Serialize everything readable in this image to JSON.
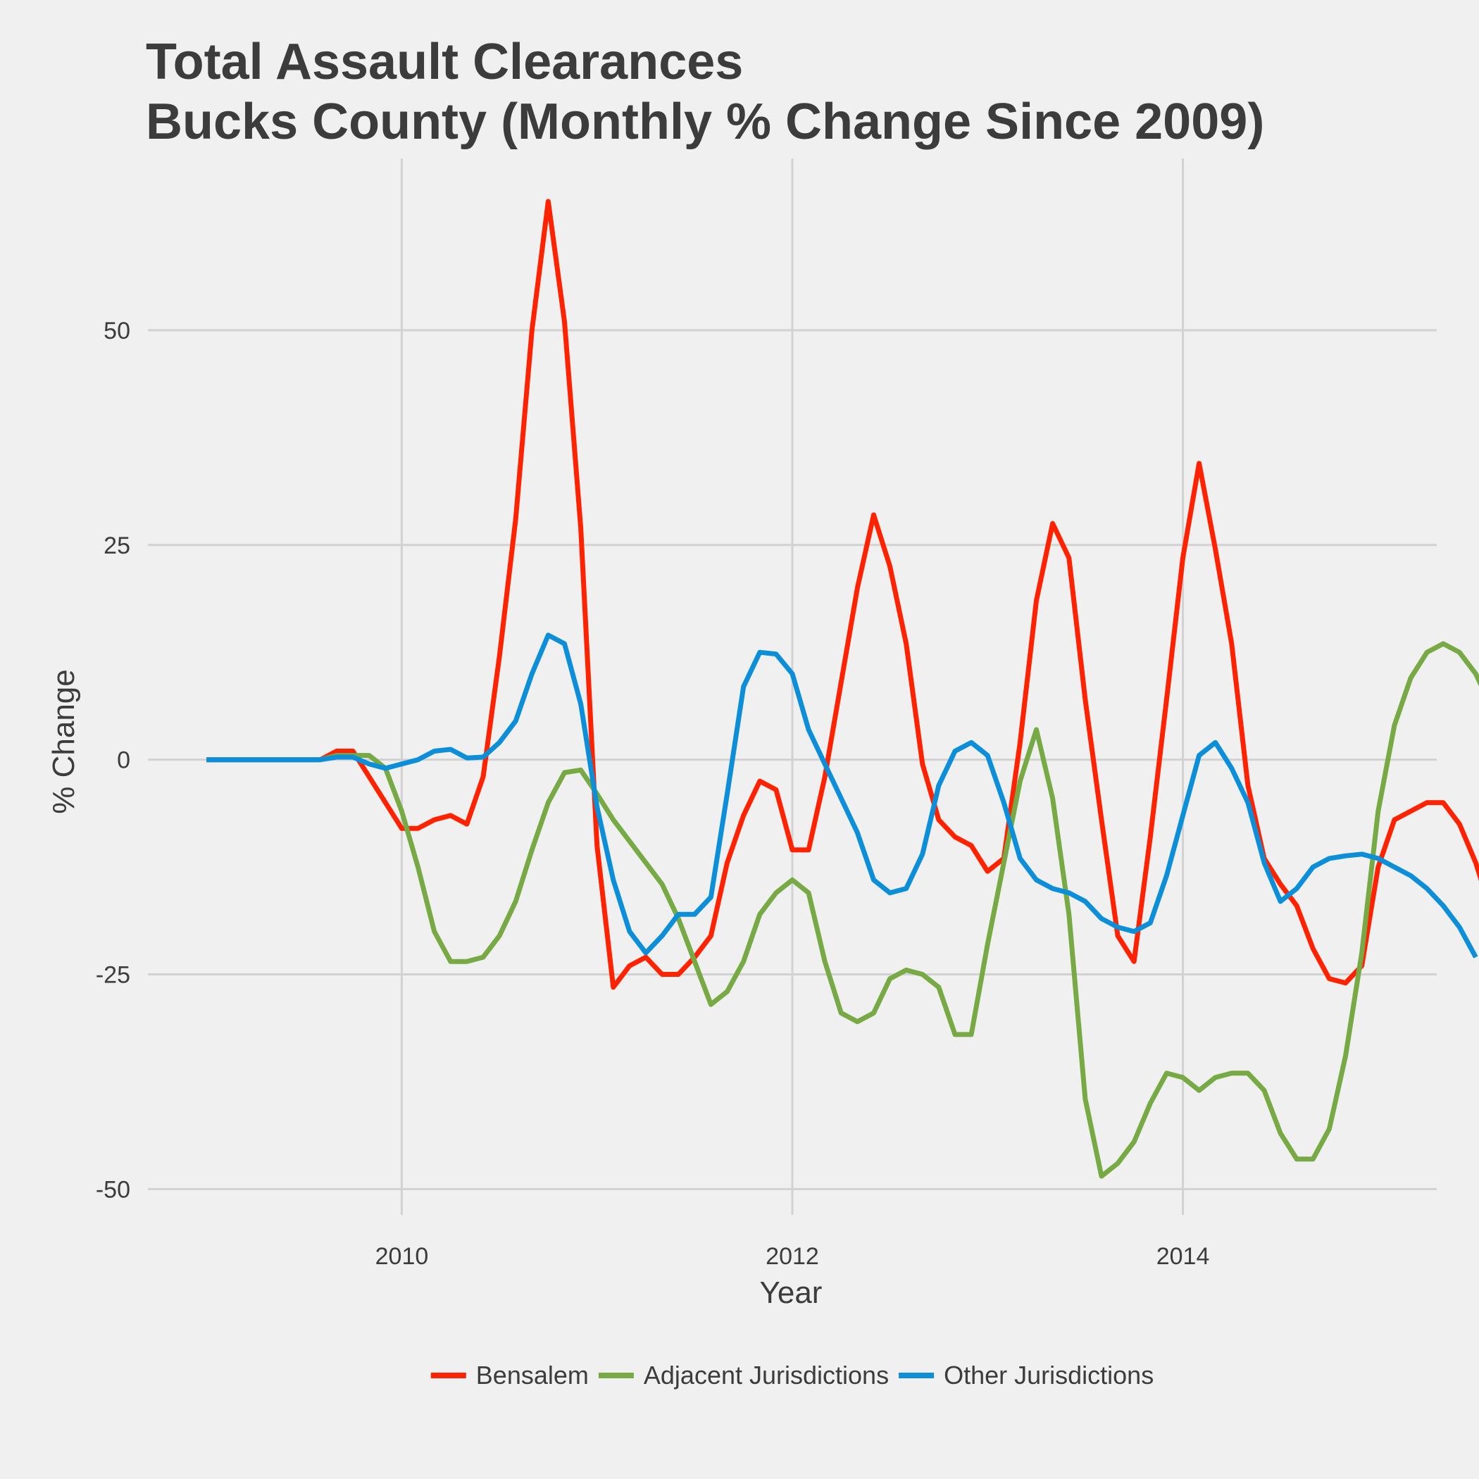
{
  "chart_data": {
    "type": "line",
    "title": "Total Assault Clearances",
    "subtitle": "Bucks County (Monthly % Change Since 2009)",
    "xlabel": "Year",
    "ylabel": "% Change",
    "xlim": [
      2008.7,
      2015.3
    ],
    "ylim": [
      -53,
      70
    ],
    "x_ticks": [
      2010,
      2012,
      2014
    ],
    "x_tick_labels": [
      "2010",
      "2012",
      "2014"
    ],
    "y_ticks": [
      -50,
      -25,
      0,
      25,
      50
    ],
    "y_tick_labels": [
      "-50",
      "-25",
      "0",
      "25",
      "50"
    ],
    "grid": true,
    "legend_position": "bottom",
    "x_start": 2009.0,
    "x_step": 0.08333,
    "series": [
      {
        "name": "Bensalem",
        "color": "#ff2200",
        "values": [
          0,
          0,
          0,
          0,
          0,
          0,
          0,
          0,
          1,
          1,
          -2,
          -5,
          -8,
          -8,
          -7,
          -6.5,
          -7.5,
          -2,
          12,
          28,
          50,
          65,
          51,
          27,
          -10,
          -26.5,
          -24,
          -23,
          -25,
          -25,
          -23,
          -20.5,
          -12,
          -6.5,
          -2.5,
          -3.5,
          -10.5,
          -10.5,
          -2,
          9,
          20,
          28.5,
          22.5,
          13.5,
          -0.5,
          -7,
          -9,
          -10,
          -13,
          -11.5,
          2,
          18.5,
          27.5,
          23.5,
          7,
          -7,
          -20.5,
          -23.5,
          -9,
          7,
          23.5,
          34.5,
          24.5,
          13.5,
          -3,
          -11.5,
          -14.5,
          -17,
          -22,
          -25.5,
          -26,
          -24,
          -12.5,
          -7,
          -6,
          -5,
          -5,
          -7.5,
          -12,
          -18
        ]
      },
      {
        "name": "Adjacent Jurisdictions",
        "color": "#77aa44",
        "values": [
          0,
          0,
          0,
          0,
          0,
          0,
          0,
          0,
          0.5,
          0.5,
          0.5,
          -1,
          -6,
          -12.5,
          -20,
          -23.5,
          -23.5,
          -23,
          -20.5,
          -16.5,
          -10.5,
          -5,
          -1.5,
          -1.2,
          -4,
          -7,
          -9.5,
          -12,
          -14.5,
          -18.5,
          -23.5,
          -28.5,
          -27,
          -23.5,
          -18,
          -15.5,
          -14,
          -15.5,
          -23.5,
          -29.5,
          -30.5,
          -29.5,
          -25.5,
          -24.5,
          -25,
          -26.5,
          -32,
          -32,
          -21.5,
          -12,
          -2.5,
          3.5,
          -4.5,
          -18,
          -39.5,
          -48.5,
          -47,
          -44.5,
          -40,
          -36.5,
          -37,
          -38.5,
          -37,
          -36.5,
          -36.5,
          -38.5,
          -43.5,
          -46.5,
          -46.5,
          -43,
          -34.5,
          -22.5,
          -6,
          4,
          9.5,
          12.5,
          13.5,
          12.5,
          10,
          6
        ]
      },
      {
        "name": "Other Jurisdictions",
        "color": "#0c8fd8",
        "values": [
          0,
          0,
          0,
          0,
          0,
          0,
          0,
          0,
          0.3,
          0.3,
          -0.5,
          -1,
          -0.5,
          0,
          1,
          1.2,
          0.2,
          0.3,
          2,
          4.5,
          10,
          14.5,
          13.5,
          6.5,
          -5.5,
          -14,
          -20,
          -22.5,
          -20.5,
          -18,
          -18,
          -16,
          -4,
          8.5,
          12.5,
          12.3,
          10,
          3.5,
          -0.5,
          -4.5,
          -8.5,
          -14,
          -15.5,
          -15,
          -11,
          -3,
          1,
          2,
          0.5,
          -5,
          -11.5,
          -14,
          -15,
          -15.5,
          -16.5,
          -18.5,
          -19.5,
          -20,
          -19,
          -13.5,
          -6.5,
          0.5,
          2,
          -1,
          -5,
          -12,
          -16.5,
          -15,
          -12.5,
          -11.5,
          -11.2,
          -11,
          -11.5,
          -12.5,
          -13.5,
          -15,
          -17,
          -19.5,
          -23
        ]
      }
    ]
  }
}
